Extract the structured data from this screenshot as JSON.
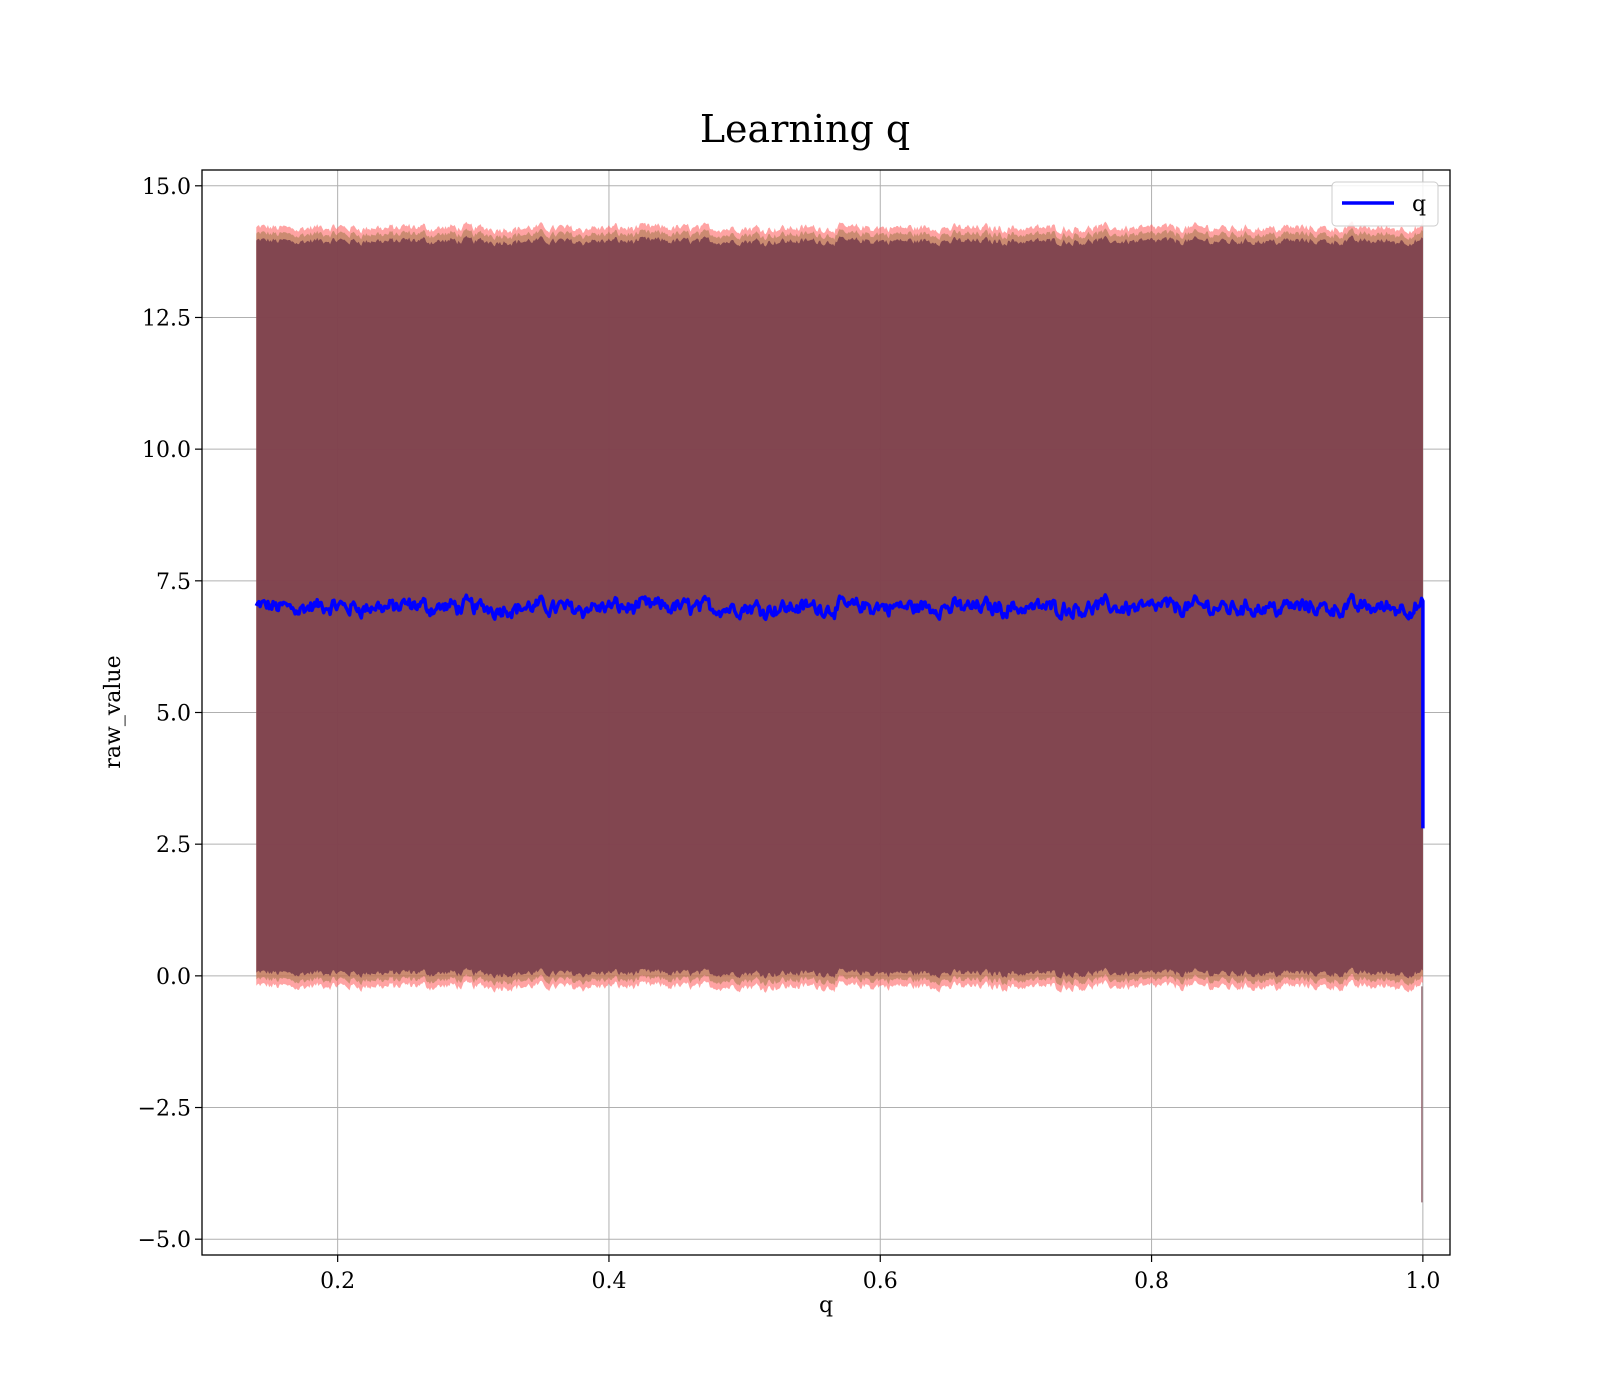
{
  "chart_data": {
    "type": "line",
    "title": "Learning q",
    "xlabel": "q",
    "ylabel": "raw_value",
    "xlim": [
      0.1,
      1.02
    ],
    "ylim": [
      -5.3,
      15.3
    ],
    "x_ticks": [
      0.2,
      0.4,
      0.6,
      0.8,
      1.0
    ],
    "x_tick_labels": [
      "0.2",
      "0.4",
      "0.6",
      "0.8",
      "1.0"
    ],
    "y_ticks": [
      -5.0,
      -2.5,
      0.0,
      2.5,
      5.0,
      7.5,
      10.0,
      12.5,
      15.0
    ],
    "y_tick_labels": [
      "−5.0",
      "−2.5",
      "0.0",
      "2.5",
      "5.0",
      "7.5",
      "10.0",
      "12.5",
      "15.0"
    ],
    "grid": true,
    "legend": {
      "position": "top-right",
      "entries": [
        {
          "label": "q",
          "color": "#0000ff"
        }
      ]
    },
    "series": [
      {
        "name": "q",
        "color": "#0000ff",
        "x_start": 0.14,
        "x_end": 1.0,
        "mean": 7.0,
        "fluctuation": 0.3,
        "final_value": 2.8,
        "band_outer": {
          "lower": -0.2,
          "upper": 14.2,
          "color": "#ff6666"
        },
        "band_inner": {
          "lower": 0.05,
          "upper": 13.95,
          "color": "#7a3e4c"
        },
        "band_tail_min": -4.3
      }
    ]
  }
}
